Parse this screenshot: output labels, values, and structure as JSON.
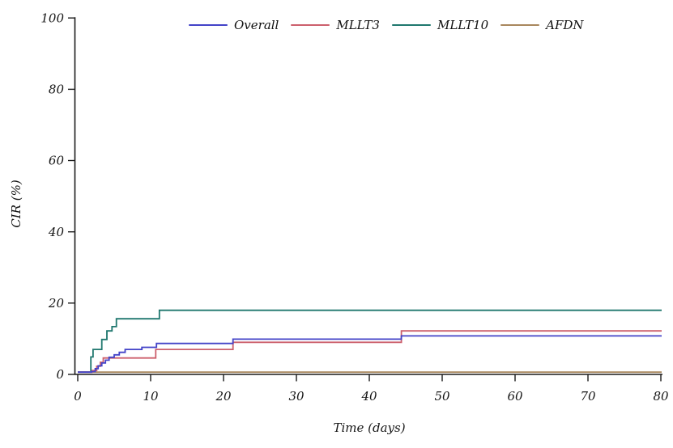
{
  "figure": {
    "background": "#ffffff",
    "axis_color": "#1a1a1a",
    "text_color": "#151515"
  },
  "chart_data": {
    "type": "line",
    "subtype": "step-cumulative-incidence",
    "title": "",
    "xlabel": "Time (days)",
    "ylabel": "CIR (%)",
    "xlim": [
      0,
      80
    ],
    "ylim": [
      0,
      100
    ],
    "x_ticks": [
      0,
      10,
      20,
      30,
      40,
      50,
      60,
      70,
      80
    ],
    "y_ticks": [
      0,
      20,
      40,
      60,
      80,
      100
    ],
    "grid": false,
    "legend_position": "top-center",
    "series": [
      {
        "name": "Overall",
        "color": "#4343c8",
        "final_value": 10.8,
        "events": [
          [
            0,
            0
          ],
          [
            1.9,
            0.8
          ],
          [
            2.4,
            1.6
          ],
          [
            2.8,
            2.4
          ],
          [
            3.3,
            3.2
          ],
          [
            3.8,
            4.0
          ],
          [
            4.3,
            4.8
          ],
          [
            5.0,
            5.5
          ],
          [
            5.7,
            6.2
          ],
          [
            6.5,
            7.0
          ],
          [
            8.8,
            7.6
          ],
          [
            10.8,
            8.7
          ],
          [
            21.3,
            9.9
          ],
          [
            44.4,
            10.8
          ]
        ]
      },
      {
        "name": "MLLT3",
        "color": "#cc5f6c",
        "final_value": 12.2,
        "events": [
          [
            0,
            0
          ],
          [
            2.0,
            1.1
          ],
          [
            2.6,
            2.3
          ],
          [
            3.1,
            3.4
          ],
          [
            3.5,
            4.6
          ],
          [
            10.7,
            7.0
          ],
          [
            21.3,
            9.0
          ],
          [
            44.4,
            12.2
          ]
        ]
      },
      {
        "name": "MLLT10",
        "color": "#1f776e",
        "final_value": 18.0,
        "events": [
          [
            0,
            0
          ],
          [
            1.8,
            4.9
          ],
          [
            2.1,
            7.0
          ],
          [
            3.3,
            9.8
          ],
          [
            4.0,
            12.2
          ],
          [
            4.7,
            13.4
          ],
          [
            5.3,
            15.6
          ],
          [
            11.2,
            18.0
          ]
        ]
      },
      {
        "name": "AFDN",
        "color": "#a8875d",
        "final_value": 0.0,
        "events": [
          [
            0,
            0
          ]
        ]
      }
    ]
  }
}
